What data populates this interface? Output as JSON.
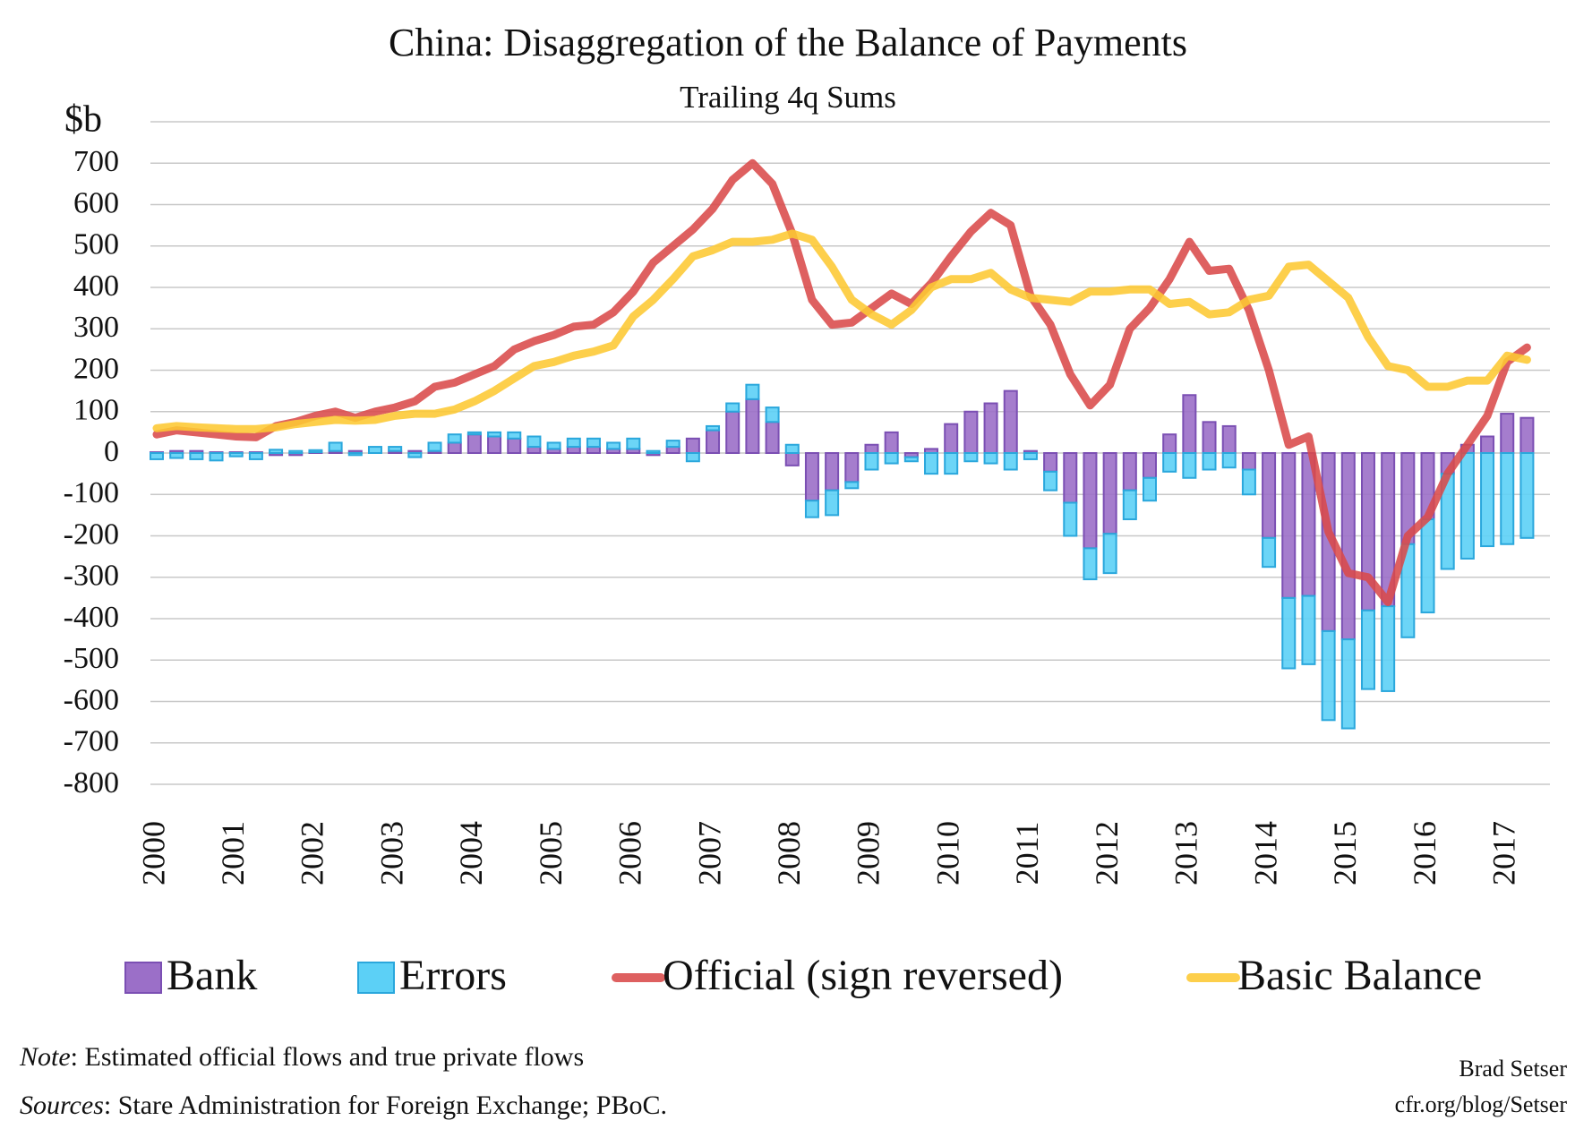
{
  "chart_data": {
    "type": "bar-line",
    "title": "China: Disaggregation of the Balance of Payments",
    "subtitle": "Trailing 4q Sums",
    "categories": [
      "2000",
      null,
      null,
      null,
      "2001",
      null,
      null,
      null,
      "2002",
      null,
      null,
      null,
      "2003",
      null,
      null,
      null,
      "2004",
      null,
      null,
      null,
      "2005",
      null,
      null,
      null,
      "2006",
      null,
      null,
      null,
      "2007",
      null,
      null,
      null,
      "2008",
      null,
      null,
      null,
      "2009",
      null,
      null,
      null,
      "2010",
      null,
      null,
      null,
      "2011",
      null,
      null,
      null,
      "2012",
      null,
      null,
      null,
      "2013",
      null,
      null,
      null,
      "2014",
      null,
      null,
      null,
      "2015",
      null,
      null,
      null,
      "2016",
      null,
      null,
      null,
      "2017",
      null
    ],
    "series": [
      {
        "name": "Bank",
        "type": "bar",
        "color": "#9b6fc8",
        "stroke": "#7b4fb3",
        "values": [
          2,
          5,
          5,
          2,
          2,
          2,
          -5,
          -5,
          2,
          5,
          5,
          0,
          5,
          5,
          5,
          25,
          45,
          40,
          35,
          15,
          10,
          15,
          15,
          10,
          10,
          -5,
          15,
          35,
          55,
          100,
          130,
          75,
          -30,
          -115,
          -90,
          -70,
          20,
          50,
          -10,
          10,
          70,
          100,
          120,
          150,
          5,
          -45,
          -120,
          -230,
          -195,
          -90,
          -60,
          45,
          140,
          75,
          65,
          -40,
          -205,
          -350,
          -345,
          -430,
          -450,
          -380,
          -370,
          -220,
          -160,
          -50,
          20,
          40,
          95,
          85
        ]
      },
      {
        "name": "Errors",
        "type": "bar",
        "color": "#5cd0f6",
        "stroke": "#2aa7dc",
        "values": [
          -15,
          -12,
          -15,
          -18,
          -8,
          -15,
          8,
          5,
          5,
          20,
          -5,
          15,
          10,
          -10,
          20,
          20,
          5,
          10,
          15,
          25,
          15,
          20,
          20,
          15,
          25,
          5,
          15,
          -20,
          10,
          20,
          35,
          35,
          20,
          -40,
          -60,
          -15,
          -40,
          -25,
          -10,
          -50,
          -50,
          -20,
          -25,
          -40,
          -15,
          -45,
          -80,
          -75,
          -95,
          -70,
          -55,
          -45,
          -60,
          -40,
          -35,
          -60,
          -70,
          -170,
          -165,
          -215,
          -215,
          -190,
          -205,
          -225,
          -225,
          -230,
          -255,
          -225,
          -220,
          -205
        ]
      },
      {
        "name": "Official (sign reversed)",
        "type": "line",
        "color": "#d94a4a",
        "values": [
          45,
          55,
          50,
          45,
          40,
          38,
          65,
          75,
          90,
          100,
          85,
          100,
          110,
          125,
          160,
          170,
          190,
          210,
          250,
          270,
          285,
          305,
          310,
          340,
          390,
          460,
          500,
          540,
          590,
          660,
          700,
          650,
          530,
          370,
          310,
          315,
          350,
          385,
          360,
          410,
          475,
          535,
          580,
          550,
          380,
          310,
          190,
          115,
          165,
          300,
          350,
          420,
          510,
          440,
          445,
          345,
          200,
          20,
          40,
          -190,
          -290,
          -300,
          -360,
          -200,
          -155,
          -50,
          20,
          90,
          220,
          255
        ]
      },
      {
        "name": "Basic Balance",
        "type": "line",
        "color": "#fdc832",
        "values": [
          60,
          65,
          62,
          60,
          58,
          58,
          62,
          70,
          75,
          80,
          78,
          80,
          90,
          95,
          95,
          105,
          125,
          150,
          180,
          210,
          220,
          235,
          245,
          260,
          330,
          370,
          420,
          475,
          490,
          510,
          510,
          515,
          530,
          515,
          450,
          370,
          335,
          310,
          345,
          400,
          420,
          420,
          435,
          395,
          375,
          370,
          365,
          390,
          390,
          395,
          395,
          360,
          365,
          335,
          340,
          370,
          380,
          450,
          455,
          415,
          375,
          280,
          210,
          200,
          160,
          160,
          175,
          175,
          235,
          225
        ]
      }
    ],
    "ylim": [
      -800,
      800
    ],
    "yticks": [
      -800,
      -700,
      -600,
      -500,
      -400,
      -300,
      -200,
      -100,
      0,
      100,
      200,
      300,
      400,
      500,
      600,
      700,
      {
        "value": 800,
        "label": "$b"
      }
    ],
    "grid": true,
    "legend": "bottom",
    "note": {
      "label": "Note",
      "text": ": Estimated official flows and true private flows"
    },
    "sources": {
      "label": "Sources",
      "text": ": Stare Administration for Foreign Exchange;  PBoC."
    },
    "credit": [
      "Brad Setser",
      "cfr.org/blog/Setser"
    ]
  }
}
